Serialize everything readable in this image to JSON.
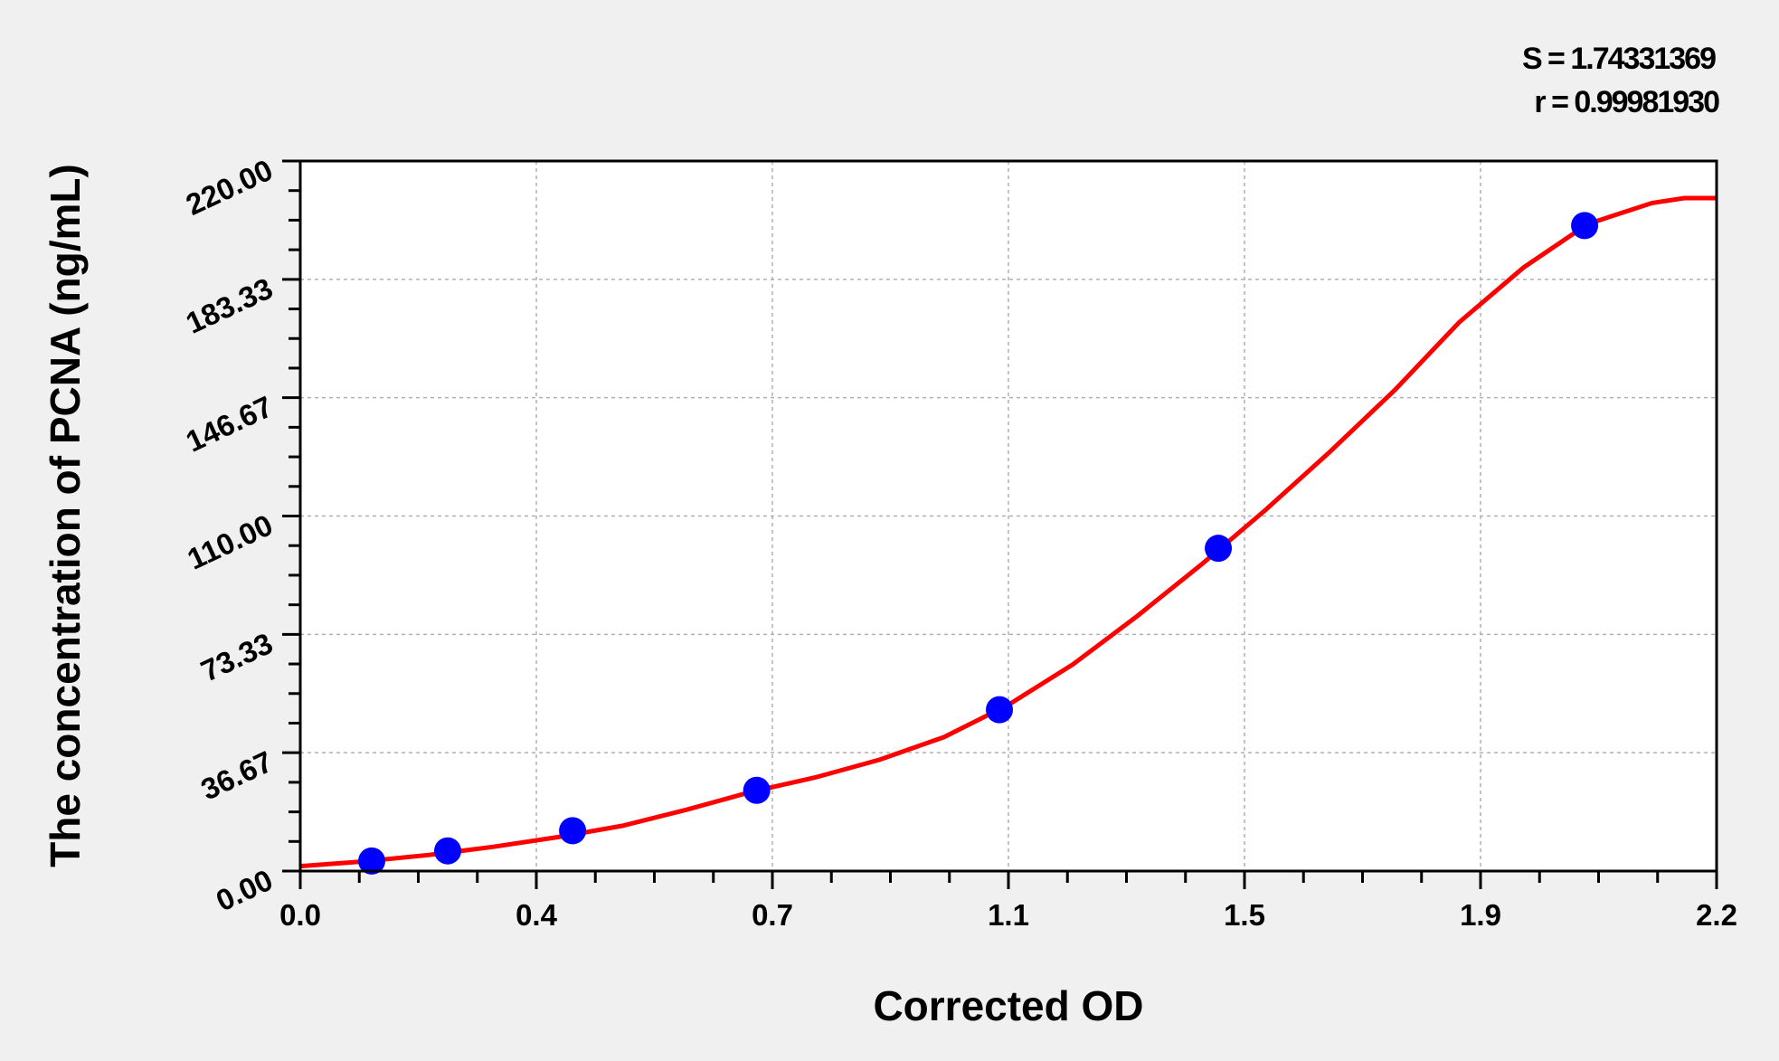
{
  "chart_data": {
    "type": "scatter",
    "xlabel": "Corrected OD",
    "ylabel": "The concentration of PCNA (ng/mL)",
    "xlim": [
      0,
      2.2
    ],
    "ylim": [
      0,
      220
    ],
    "x_tick_labels": [
      "0.0",
      "0.4",
      "0.7",
      "1.1",
      "1.5",
      "1.9",
      "2.2"
    ],
    "y_tick_labels": [
      "0.00",
      "36.67",
      "73.33",
      "110.00",
      "146.67",
      "183.33",
      "220.00"
    ],
    "grid": true,
    "stats": [
      "S = 1.74331369",
      "r = 0.99981930"
    ],
    "series": [
      {
        "type": "scatter",
        "color": "#0000ff",
        "x": [
          0.111,
          0.229,
          0.423,
          0.709,
          1.086,
          1.426,
          1.995
        ],
        "y": [
          3.13,
          6.25,
          12.5,
          25,
          50,
          100,
          200
        ]
      },
      {
        "type": "line",
        "color": "#ff0000",
        "x": [
          0,
          0.1,
          0.2,
          0.3,
          0.4,
          0.5,
          0.6,
          0.7,
          0.8,
          0.9,
          1.0,
          1.1,
          1.2,
          1.3,
          1.4,
          1.5,
          1.6,
          1.7,
          1.8,
          1.9,
          2.0,
          2.1,
          2.15,
          2.2
        ],
        "y": [
          1.5,
          3,
          5,
          7.5,
          10.5,
          14,
          19,
          24.5,
          29,
          34.5,
          41.5,
          51.5,
          64,
          79,
          95,
          112,
          130,
          149,
          170,
          187,
          200.5,
          207,
          208.5,
          208.5
        ]
      }
    ]
  }
}
